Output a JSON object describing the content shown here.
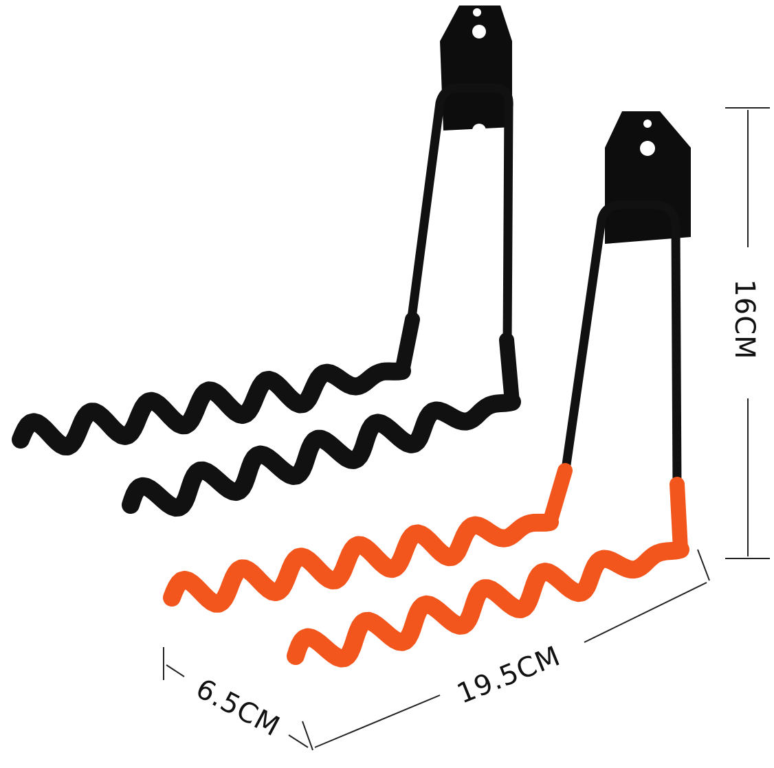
{
  "product": {
    "hooks": [
      {
        "color": "#111111",
        "tip_color": "#111111"
      },
      {
        "color": "#111111",
        "tip_color": "#f2561d"
      }
    ]
  },
  "dimensions": {
    "height_label": "16CM",
    "length_label": "19.5CM",
    "width_label": "6.5CM"
  }
}
